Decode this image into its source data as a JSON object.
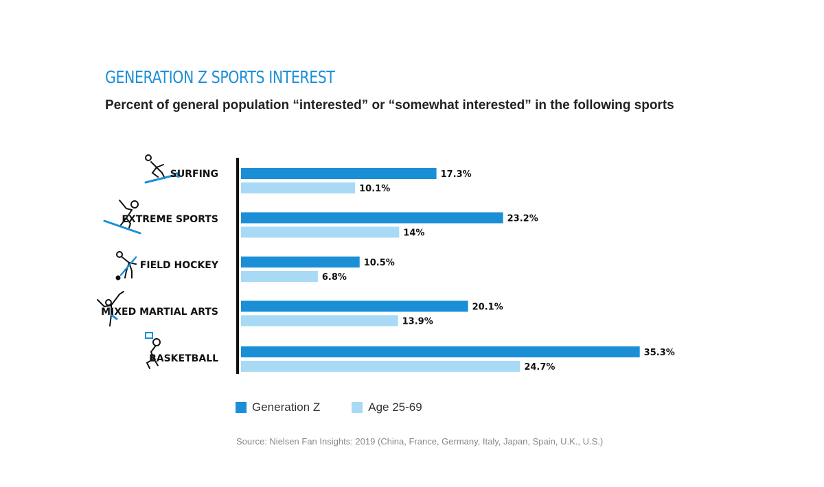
{
  "colors": {
    "title": "#1c8fd8",
    "gen_z": "#1a8fd6",
    "age_25_69": "#a8daf5",
    "axis": "#111111"
  },
  "chart_data": {
    "type": "bar",
    "orientation": "horizontal",
    "title": "GENERATION Z SPORTS INTEREST",
    "subtitle": "Percent of general population “interested” or “somewhat interested” in the following sports",
    "categories": [
      "SURFING",
      "EXTREME SPORTS",
      "FIELD HOCKEY",
      "MIXED MARTIAL ARTS",
      "BASKETBALL"
    ],
    "category_icons": [
      "surfer-icon",
      "snowboarder-icon",
      "field-hockey-player-icon",
      "martial-artist-icon",
      "basketball-player-icon"
    ],
    "series": [
      {
        "name": "Generation Z",
        "values": [
          17.3,
          23.2,
          10.5,
          20.1,
          35.3
        ],
        "labels": [
          "17.3%",
          "23.2%",
          "10.5%",
          "20.1%",
          "35.3%"
        ]
      },
      {
        "name": "Age 25-69",
        "values": [
          10.1,
          14,
          6.8,
          13.9,
          24.7
        ],
        "labels": [
          "10.1%",
          "14%",
          "6.8%",
          "13.9%",
          "24.7%"
        ]
      }
    ],
    "xlim": [
      0,
      40
    ],
    "grid": false,
    "legend_position": "bottom-left"
  },
  "source": "Source: Nielsen Fan Insights: 2019 (China, France, Germany, Italy, Japan, Spain, U.K., U.S.)"
}
